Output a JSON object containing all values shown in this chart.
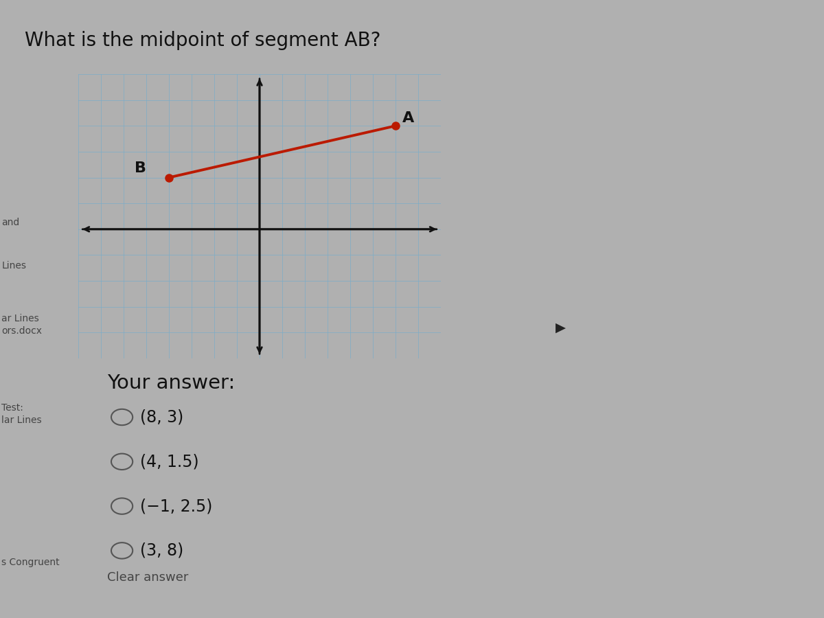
{
  "title": "What is the midpoint of segment AB?",
  "title_fontsize": 20,
  "bg_color": "#b0b0b0",
  "content_bg": "#c8c8c8",
  "graph_bg": "#d0dde8",
  "graph_border": "#8ab0c8",
  "grid_color": "#7bacc8",
  "axis_color": "#111111",
  "segment_color": "#bb1a00",
  "point_A": [
    6,
    4
  ],
  "point_B": [
    -4,
    2
  ],
  "label_A": "A",
  "label_B": "B",
  "graph_xlim": [
    -8,
    8
  ],
  "graph_ylim": [
    -5,
    6
  ],
  "your_answer_label": "Your answer:",
  "choices": [
    "(8, 3)",
    "(4, 1.5)",
    "(−1, 2.5)",
    "(3, 8)"
  ],
  "left_sidebar_labels": [
    "and",
    "Lines",
    "ar Lines",
    "ors.docx",
    "Test:",
    "lar Lines",
    "s Congruent"
  ],
  "sidebar_color": "#444444",
  "answer_fontsize": 17,
  "your_answer_fontsize": 21,
  "radio_color": "#555555",
  "right_green_color": "#8a9e70",
  "right_dark_color": "#4a4a3a",
  "cursor_color": "#222222"
}
